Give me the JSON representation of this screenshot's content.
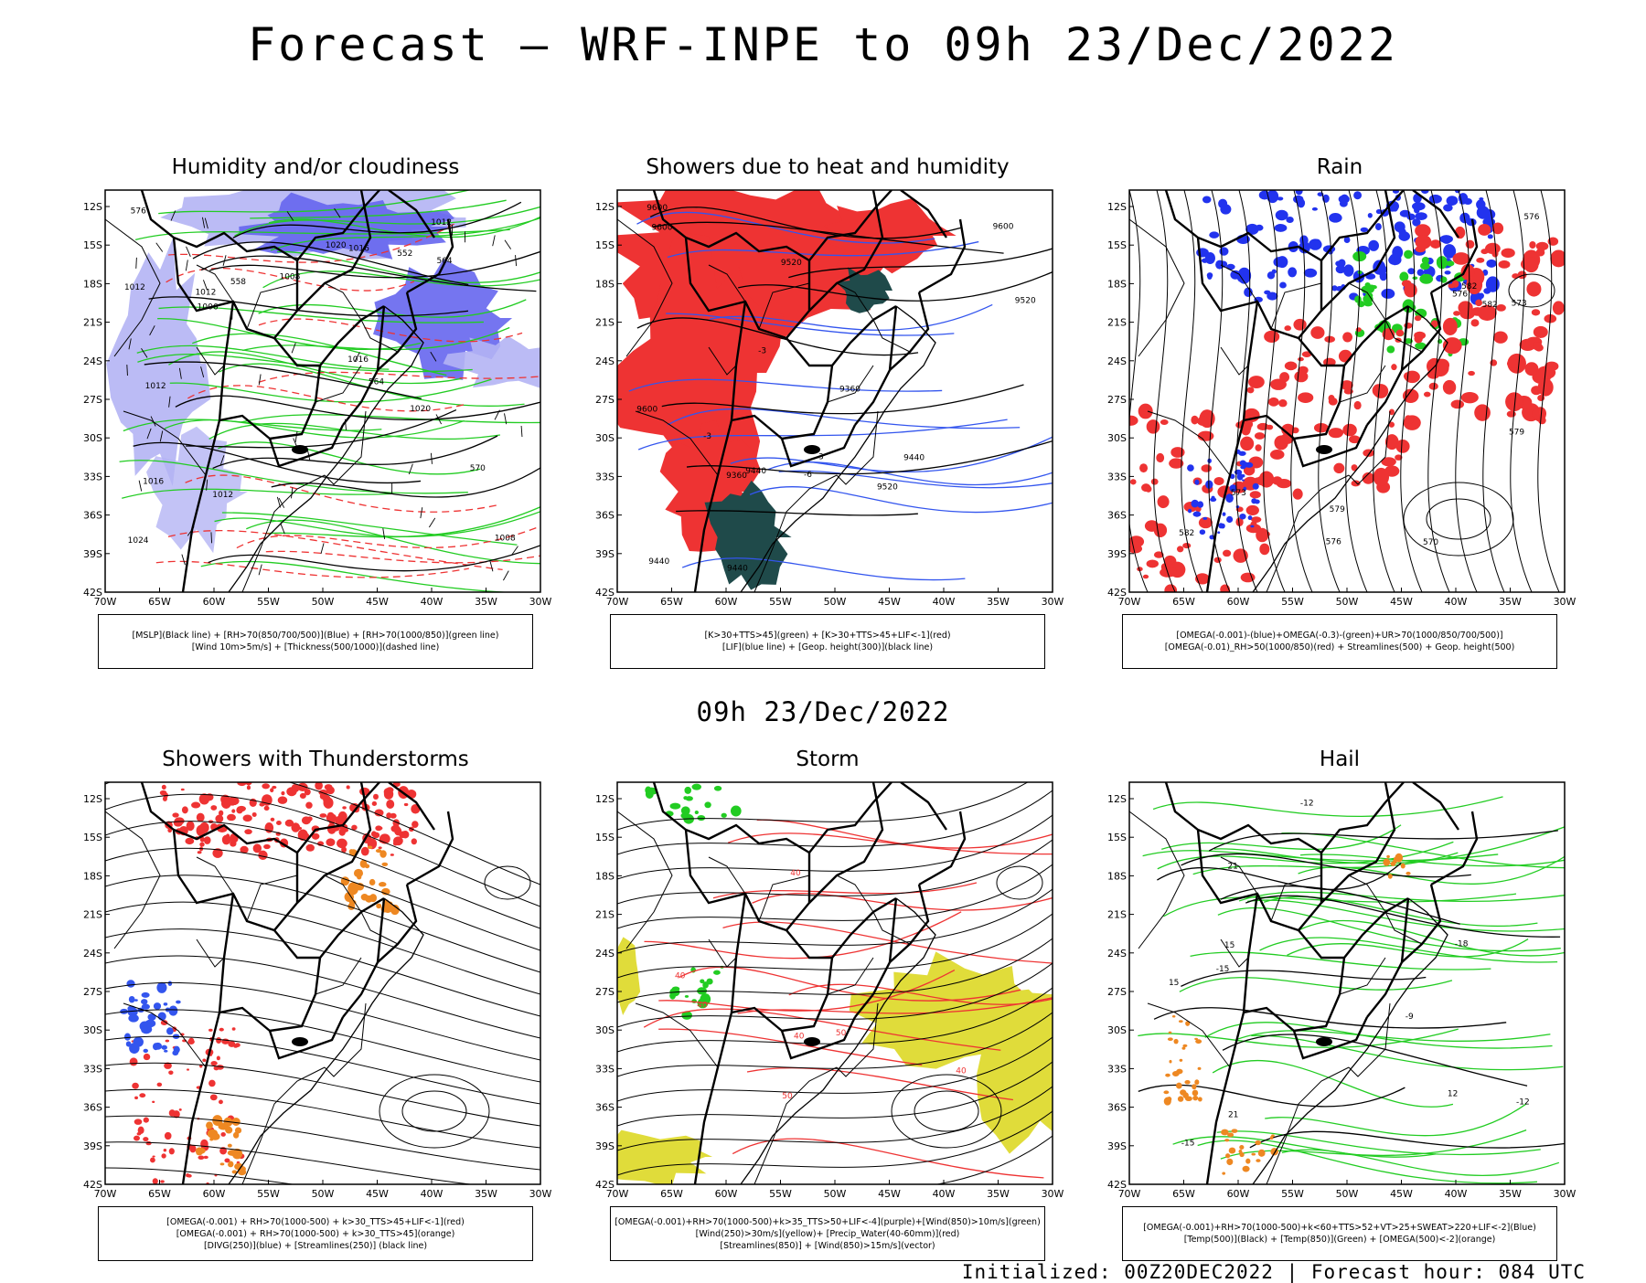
{
  "header": {
    "title": "Forecast – WRF-INPE to 09h 23/Dec/2022"
  },
  "mid_title": "09h 23/Dec/2022",
  "footer": "Initialized: 00Z20DEC2022 | Forecast hour: 084 UTC",
  "axes": {
    "lat_labels": [
      "12S",
      "15S",
      "18S",
      "21S",
      "24S",
      "27S",
      "30S",
      "33S",
      "36S",
      "39S",
      "42S"
    ],
    "lon_labels": [
      "70W",
      "65W",
      "60W",
      "55W",
      "50W",
      "45W",
      "40W",
      "35W",
      "30W"
    ]
  },
  "panels": [
    {
      "id": "humidity",
      "title": "Humidity and/or cloudiness",
      "legend": [
        "[MSLP](Black line) + [RH>70(850/700/500)](Blue) + [RH>70(1000/850)](green line)",
        "[Wind 10m>5m/s] + [Thickness(500/1000)](dashed line)"
      ],
      "contour_labels": [
        "1012",
        "1012",
        "1012",
        "1008",
        "1006",
        "1016",
        "1012",
        "1016",
        "1016",
        "1020",
        "1020",
        "1024",
        "570",
        "576",
        "564",
        "558",
        "552",
        "564",
        "1008",
        "1012"
      ]
    },
    {
      "id": "showers",
      "title": "Showers due to heat and humidity",
      "legend": [
        "[K>30+TTS>45](green) + [K>30+TTS>45+LIF<-1](red)",
        "[LIF](blue line) + [Geop. height(300)](black line)"
      ],
      "contour_labels": [
        "9600",
        "9600",
        "9600",
        "9600",
        "9520",
        "9520",
        "9520",
        "9440",
        "9440",
        "9440",
        "9360",
        "9360",
        "9440",
        "-3",
        "-3",
        "-3",
        "-6"
      ]
    },
    {
      "id": "rain",
      "title": "Rain",
      "legend": [
        "[OMEGA(-0.001)-(blue)+OMEGA(-0.3)-(green)+UR>70(1000/850/700/500)]",
        "[OMEGA(-0.01)_RH>50(1000/850)(red) + Streamlines(500) + Geop. height(500)"
      ],
      "contour_labels": [
        "582",
        "582",
        "579",
        "576",
        "576",
        "573",
        "573",
        "576",
        "579",
        "582",
        "570"
      ]
    },
    {
      "id": "thunder",
      "title": "Showers with Thunderstorms",
      "legend": [
        "[OMEGA(-0.001) + RH>70(1000-500) + k>30_TTS>45+LIF<-1](red)",
        "[OMEGA(-0.001) + RH>70(1000-500) + k>30_TTS>45](orange)",
        "[DIVG(250)](blue) + [Streamlines(250)] (black line)"
      ],
      "contour_labels": []
    },
    {
      "id": "storm",
      "title": "Storm",
      "legend": [
        "[OMEGA(-0.001)+RH>70(1000-500)+k>35_TTS>50+LIF<-4](purple)+[Wind(850)>10m/s](green)",
        "[Wind(250)>30m/s](yellow)+ [Precip_Water(40-60mm)](red)",
        "[Streamlines(850)] + [Wind(850)>15m/s](vector)"
      ],
      "contour_labels": [
        "40",
        "40",
        "40",
        "50",
        "40",
        "50",
        "40"
      ]
    },
    {
      "id": "hail",
      "title": "Hail",
      "legend": [
        "[OMEGA(-0.001)+RH>70(1000-500)+k<60+TTS>52+VT>25+SWEAT>220+LIF<-2](Blue)",
        "[Temp(500)](Black) + [Temp(850)](Green) + [OMEGA(500)<-2](orange)"
      ],
      "contour_labels": [
        "15",
        "21",
        "12",
        "15",
        "21",
        "-12",
        "-9",
        "-15",
        "-18",
        "-12",
        "-15"
      ]
    }
  ],
  "colors": {
    "blue_rh": "#6666ee",
    "light_blue": "#b4b4f4",
    "green": "#22cc22",
    "red": "#ee3333",
    "dark_teal": "#1f4a4a",
    "orange": "#ee8822",
    "yellow": "#e0dc3a",
    "border": "#000000"
  }
}
